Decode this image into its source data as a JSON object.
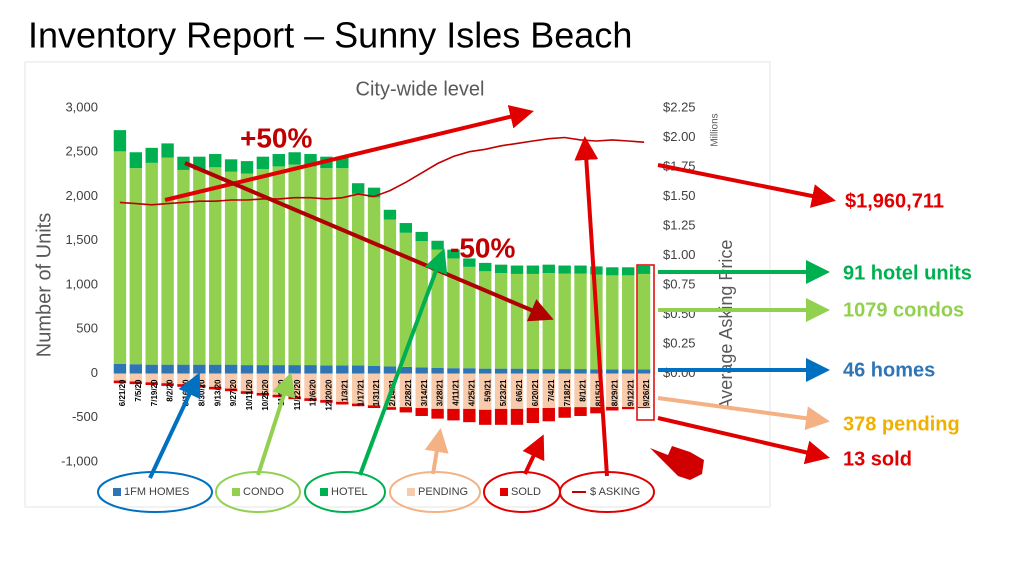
{
  "title": "Inventory Report – Sunny Isles Beach",
  "chart_data": {
    "type": "stacked-bar-line",
    "title": "City-wide level",
    "ylabel": "Number of Units",
    "y2label": "Average Asking Price",
    "y2unit": "Millions",
    "categories": [
      "6/21/20",
      "7/5/20",
      "7/19/20",
      "8/2/20",
      "8/16/20",
      "8/30/20",
      "9/13/20",
      "9/27/20",
      "10/11/20",
      "10/25/20",
      "11/8/20",
      "11/22/20",
      "12/6/20",
      "12/20/20",
      "1/3/21",
      "1/17/21",
      "1/31/21",
      "2/14/21",
      "2/28/21",
      "3/14/21",
      "3/28/21",
      "4/11/21",
      "4/25/21",
      "5/9/21",
      "5/23/21",
      "6/6/21",
      "6/20/21",
      "7/4/21",
      "7/18/21",
      "8/1/21",
      "8/15/21",
      "8/29/21",
      "9/12/21",
      "9/26/21"
    ],
    "series": [
      {
        "name": "1FM HOMES",
        "color": "#2e75b6",
        "stack": "up",
        "values": [
          110,
          105,
          100,
          100,
          100,
          100,
          100,
          100,
          95,
          95,
          95,
          95,
          95,
          90,
          90,
          90,
          85,
          80,
          75,
          70,
          65,
          60,
          60,
          55,
          55,
          55,
          50,
          50,
          50,
          50,
          48,
          47,
          46,
          46
        ]
      },
      {
        "name": "CONDO",
        "color": "#92d050",
        "stack": "up",
        "values": [
          2400,
          2215,
          2280,
          2340,
          2200,
          2200,
          2230,
          2180,
          2165,
          2215,
          2245,
          2265,
          2245,
          2230,
          2230,
          1940,
          1905,
          1660,
          1515,
          1425,
          1335,
          1240,
          1145,
          1100,
          1080,
          1070,
          1075,
          1085,
          1078,
          1078,
          1070,
          1062,
          1063,
          1079
        ]
      },
      {
        "name": "HOTEL",
        "color": "#00b050",
        "stack": "up",
        "values": [
          240,
          180,
          170,
          160,
          150,
          150,
          150,
          140,
          140,
          140,
          140,
          140,
          140,
          130,
          130,
          120,
          110,
          110,
          110,
          105,
          100,
          100,
          95,
          95,
          95,
          95,
          95,
          95,
          92,
          92,
          92,
          91,
          91,
          91
        ]
      },
      {
        "name": "PENDING",
        "color": "#f8cbad",
        "stack": "down",
        "values": [
          -80,
          -90,
          -100,
          -110,
          -120,
          -130,
          -150,
          -170,
          -200,
          -220,
          -240,
          -260,
          -280,
          -300,
          -320,
          -340,
          -360,
          -380,
          -380,
          -390,
          -400,
          -400,
          -400,
          -410,
          -400,
          -400,
          -390,
          -390,
          -380,
          -380,
          -380,
          -378,
          -378,
          -378
        ]
      },
      {
        "name": "SOLD",
        "color": "#e00000",
        "stack": "down",
        "values": [
          -30,
          -30,
          -30,
          -30,
          -30,
          -30,
          -30,
          -30,
          -30,
          -30,
          -30,
          -30,
          -30,
          -30,
          -30,
          -30,
          -30,
          -30,
          -60,
          -90,
          -110,
          -130,
          -150,
          -170,
          -180,
          -180,
          -170,
          -150,
          -120,
          -100,
          -70,
          -40,
          -25,
          -13
        ]
      },
      {
        "name": "$ ASKING",
        "color": "#c00000",
        "axis": "y2",
        "kind": "line",
        "values": [
          1.45,
          1.44,
          1.43,
          1.44,
          1.45,
          1.46,
          1.46,
          1.47,
          1.47,
          1.48,
          1.48,
          1.49,
          1.49,
          1.48,
          1.49,
          1.52,
          1.5,
          1.55,
          1.62,
          1.7,
          1.78,
          1.84,
          1.88,
          1.9,
          1.93,
          1.95,
          1.97,
          1.99,
          2.0,
          1.98,
          1.97,
          1.98,
          1.97,
          1.96
        ]
      }
    ],
    "ylim": [
      -1000,
      3000
    ],
    "yticks": [
      {
        "value": -1000,
        "label": "-1,000"
      },
      -500,
      0,
      500,
      {
        "value": 1000,
        "label": "1,000"
      },
      {
        "value": 1500,
        "label": "1,500"
      },
      {
        "value": 2000,
        "label": "2,000"
      },
      {
        "value": 2500,
        "label": "2,500"
      },
      {
        "value": 3000,
        "label": "3,000"
      }
    ],
    "y2lim": [
      -0.75,
      2.25
    ],
    "y2ticks": [
      {
        "value": 0,
        "label": "$0.00"
      },
      {
        "value": 0.25,
        "label": "$0.25"
      },
      {
        "value": 0.5,
        "label": "$0.50"
      },
      {
        "value": 0.75,
        "label": "$0.75"
      },
      {
        "value": 1,
        "label": "$1.00"
      },
      {
        "value": 1.25,
        "label": "$1.25"
      },
      {
        "value": 1.5,
        "label": "$1.50"
      },
      {
        "value": 1.75,
        "label": "$1.75"
      },
      {
        "value": 2,
        "label": "$2.00"
      },
      {
        "value": 2.25,
        "label": "$2.25"
      }
    ],
    "grid": false,
    "annotations": [
      "+50%",
      "-50%",
      "$1,960,711",
      "91 hotel units",
      "1079 condos",
      "46 homes",
      "378 pending",
      "13 sold"
    ]
  }
}
